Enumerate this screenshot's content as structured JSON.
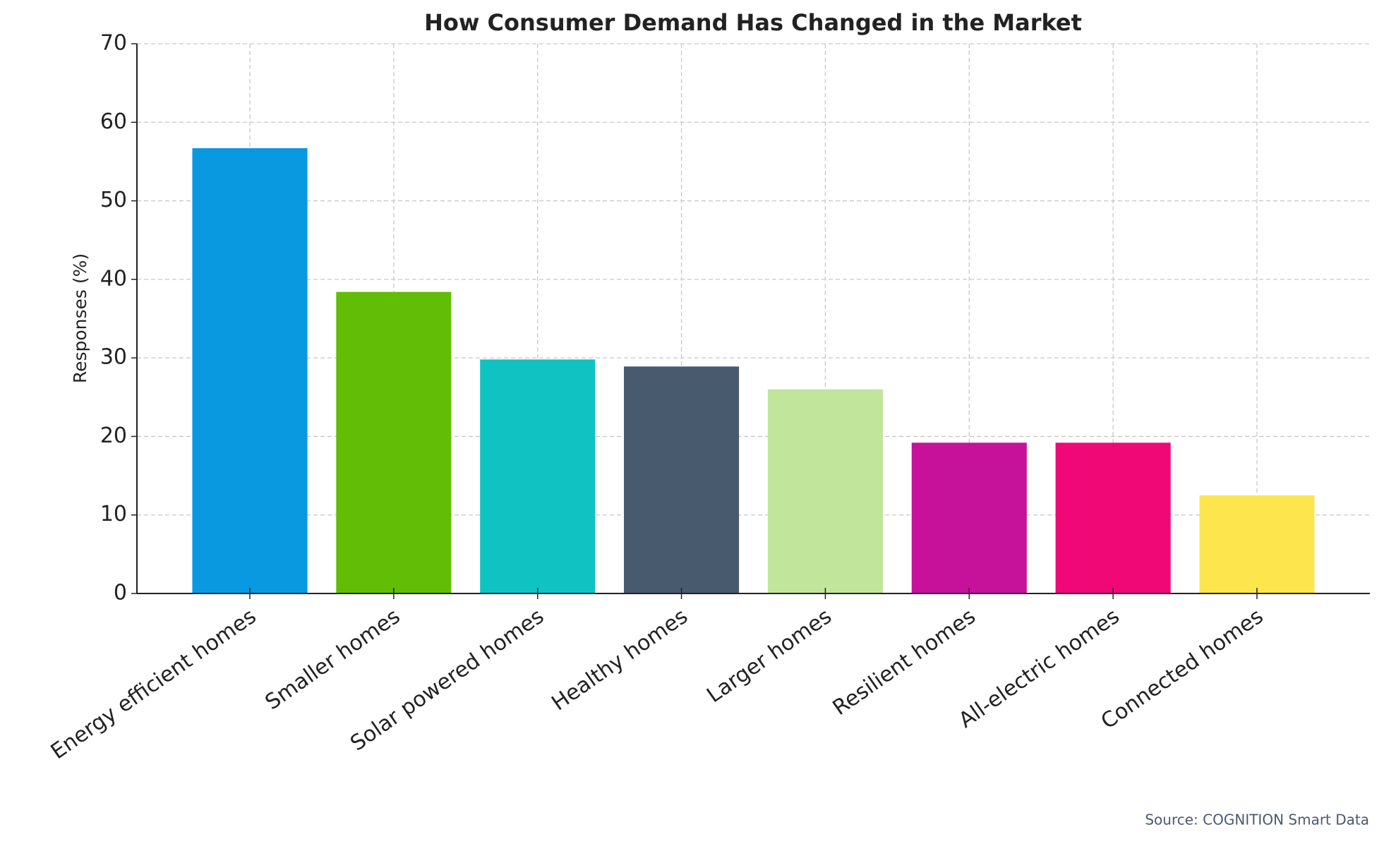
{
  "chart_data": {
    "type": "bar",
    "title": "How Consumer Demand Has Changed in the Market",
    "y_label": "Responses (%)",
    "source": "Source: COGNITION Smart Data",
    "categories": [
      "Energy efficient homes",
      "Smaller homes",
      "Solar powered homes",
      "Healthy homes",
      "Larger homes",
      "Resilient homes",
      "All-electric homes",
      "Connected homes"
    ],
    "values": [
      56.7,
      38.4,
      29.8,
      28.9,
      26,
      19.2,
      19.2,
      12.5
    ],
    "colors": [
      "#0899e1",
      "#62bd06",
      "#10c3c2",
      "#475a6e",
      "#c2e59c",
      "#c6119a",
      "#ef0876",
      "#fde64d"
    ],
    "ylim": [
      0,
      70
    ],
    "yticks": [
      0,
      10,
      20,
      30,
      40,
      50,
      60,
      70
    ],
    "grid": true
  }
}
